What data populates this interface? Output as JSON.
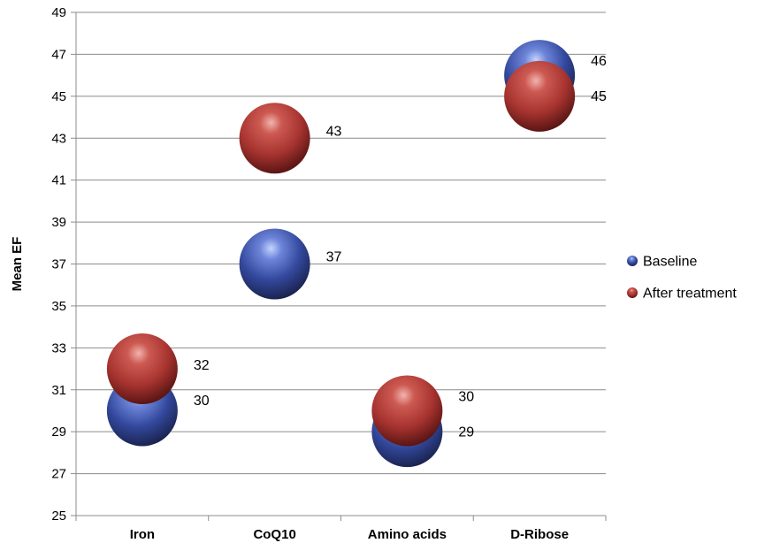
{
  "chart_data": {
    "type": "bubble",
    "title": "",
    "xlabel": "",
    "ylabel": "Mean EF",
    "categories": [
      "Iron",
      "CoQ10",
      "Amino acids",
      "D-Ribose"
    ],
    "ylim": [
      25,
      49
    ],
    "ytick_step": 2,
    "grid": true,
    "legend_position": "right",
    "series": [
      {
        "name": "Baseline",
        "values": [
          30,
          37,
          29,
          46
        ],
        "color": "#3f53a6"
      },
      {
        "name": "After treatment",
        "values": [
          32,
          43,
          30,
          45
        ],
        "color": "#b53a36"
      }
    ]
  }
}
